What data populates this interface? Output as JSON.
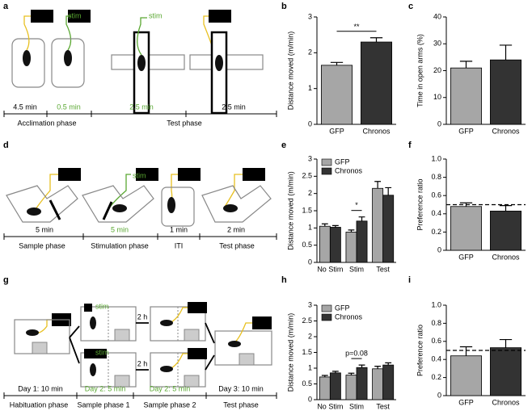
{
  "diagrams": {
    "a": {
      "label": "a",
      "stim": [
        "stim",
        "stim"
      ],
      "durations": [
        "4.5 min",
        "0.5 min",
        "2.5 min",
        "2.5 min"
      ],
      "phases": [
        "Acclimation phase",
        "Test phase"
      ]
    },
    "d": {
      "label": "d",
      "stim": [
        "stim"
      ],
      "durations": [
        "5 min",
        "5 min",
        "1 min",
        "2 min"
      ],
      "phases": [
        "Sample phase",
        "Stimulation phase",
        "ITI",
        "Test phase"
      ]
    },
    "g": {
      "label": "g",
      "stim": [
        "stim",
        "stim"
      ],
      "delays": [
        "2 h",
        "2 h"
      ],
      "durations": [
        "Day 1: 10 min",
        "Day 2: 5 min",
        "Day 2: 5 min",
        "Day 3: 10 min"
      ],
      "phases": [
        "Habituation phase",
        "Sample phase 1",
        "Sample phase 2",
        "Test phase"
      ]
    }
  },
  "chart_data": [
    {
      "type": "bar",
      "panel_label": "b",
      "y_label": "Distance moved (m/min)",
      "categories": [
        "GFP",
        "Chronos"
      ],
      "values": [
        1.65,
        2.3
      ],
      "errors": [
        0.08,
        0.12
      ],
      "colors": [
        "#a6a6a6",
        "#333333"
      ],
      "ylim": [
        0,
        3
      ],
      "yticks": [
        0,
        1,
        2,
        3
      ],
      "significance": "**"
    },
    {
      "type": "bar",
      "panel_label": "c",
      "y_label": "Time in open arms (%)",
      "categories": [
        "GFP",
        "Chronos"
      ],
      "values": [
        21,
        24
      ],
      "errors": [
        2.5,
        5.5
      ],
      "colors": [
        "#a6a6a6",
        "#333333"
      ],
      "ylim": [
        0,
        40
      ],
      "yticks": [
        0,
        10,
        20,
        30,
        40
      ]
    },
    {
      "type": "grouped_bar",
      "panel_label": "e",
      "y_label": "Distance moved (m/min)",
      "categories": [
        "No Stim",
        "Stim",
        "Test"
      ],
      "series": [
        {
          "name": "GFP",
          "color": "#a6a6a6",
          "values": [
            1.05,
            0.88,
            2.15
          ],
          "errors": [
            0.07,
            0.06,
            0.2
          ]
        },
        {
          "name": "Chronos",
          "color": "#333333",
          "values": [
            1.02,
            1.2,
            1.95
          ],
          "errors": [
            0.05,
            0.12,
            0.22
          ]
        }
      ],
      "ylim": [
        0,
        3
      ],
      "yticks": [
        0,
        0.5,
        1,
        1.5,
        2,
        2.5,
        3
      ],
      "legend": "upper left",
      "significance": "*"
    },
    {
      "type": "bar",
      "panel_label": "f",
      "y_label": "Preference ratio",
      "categories": [
        "GFP",
        "Chronos"
      ],
      "values": [
        0.48,
        0.43
      ],
      "errors": [
        0.04,
        0.06
      ],
      "colors": [
        "#a6a6a6",
        "#333333"
      ],
      "ylim": [
        0,
        1
      ],
      "yticks": [
        0,
        0.2,
        0.4,
        0.6,
        0.8,
        {
          "value": 1,
          "label": "1.0"
        }
      ],
      "reference_line": 0.5
    },
    {
      "type": "grouped_bar",
      "panel_label": "h",
      "y_label": "Distance moved (m/min)",
      "categories": [
        "No Stim",
        "Stim",
        "Test"
      ],
      "series": [
        {
          "name": "GFP",
          "color": "#a6a6a6",
          "values": [
            0.72,
            0.78,
            0.98
          ],
          "errors": [
            0.05,
            0.06,
            0.08
          ]
        },
        {
          "name": "Chronos",
          "color": "#333333",
          "values": [
            0.85,
            1.02,
            1.1
          ],
          "errors": [
            0.05,
            0.08,
            0.07
          ]
        }
      ],
      "ylim": [
        0,
        3
      ],
      "yticks": [
        0,
        0.5,
        1,
        1.5,
        2,
        2.5,
        3
      ],
      "legend": "upper left",
      "significance": "p=0.08"
    },
    {
      "type": "bar",
      "panel_label": "i",
      "y_label": "Preference ratio",
      "categories": [
        "GFP",
        "Chronos"
      ],
      "values": [
        0.44,
        0.53
      ],
      "errors": [
        0.1,
        0.09
      ],
      "colors": [
        "#a6a6a6",
        "#333333"
      ],
      "ylim": [
        0,
        1
      ],
      "yticks": [
        0,
        0.2,
        0.4,
        0.6,
        0.8,
        {
          "value": 1,
          "label": "1.0"
        }
      ],
      "reference_line": 0.5
    }
  ]
}
